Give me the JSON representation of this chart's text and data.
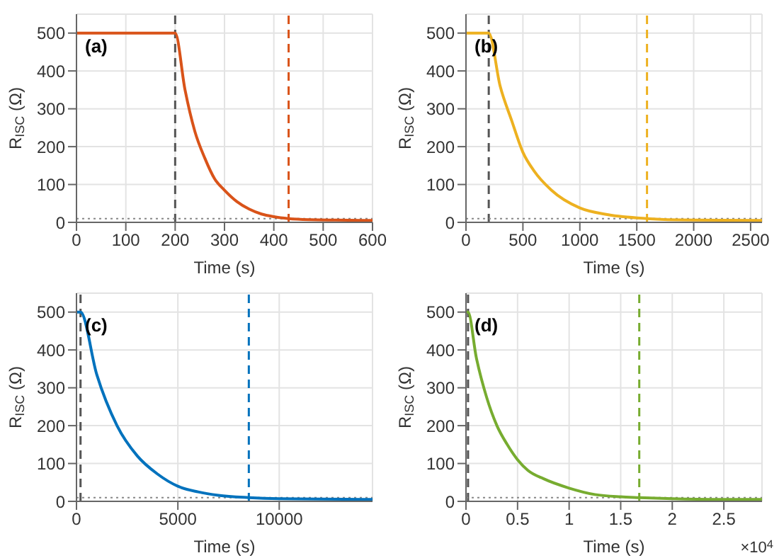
{
  "chart_data": [
    {
      "type": "line",
      "xlabel": "Time (s)",
      "ylabel": "R$_{ISC}$ (Ω)",
      "annotations": [
        "(a)"
      ],
      "xlim": [
        0,
        600
      ],
      "xticks": [
        0,
        100,
        200,
        300,
        400,
        500,
        600
      ],
      "ylim": [
        0,
        550
      ],
      "yticks": [
        0,
        100,
        200,
        300,
        400,
        500
      ],
      "grid": true,
      "series": [
        {
          "color": "#d95319",
          "x": [
            0,
            200,
            220,
            240,
            260,
            280,
            300,
            325,
            350,
            375,
            400,
            430,
            475,
            525,
            600
          ],
          "values": [
            500,
            500,
            350,
            240,
            170,
            115,
            85,
            55,
            35,
            22,
            15,
            10,
            7,
            6,
            5
          ]
        }
      ],
      "ref_lines": [
        {
          "axis": "x",
          "value": 200,
          "color": "#555555",
          "line_style": "dashed"
        },
        {
          "axis": "x",
          "value": 430,
          "color": "#d95319",
          "line_style": "dashed"
        },
        {
          "axis": "y",
          "value": 10,
          "color": "#888888",
          "line_style": "dotted"
        }
      ]
    },
    {
      "type": "line",
      "xlabel": "Time (s)",
      "ylabel": "R$_{ISC}$ (Ω)",
      "annotations": [
        "(b)"
      ],
      "xlim": [
        0,
        2600
      ],
      "xticks": [
        0,
        500,
        1000,
        1500,
        2000,
        2500
      ],
      "ylim": [
        0,
        550
      ],
      "yticks": [
        0,
        100,
        200,
        300,
        400,
        500
      ],
      "grid": true,
      "series": [
        {
          "color": "#edb120",
          "x": [
            0,
            200,
            300,
            400,
            500,
            600,
            750,
            1000,
            1250,
            1590,
            2000,
            2600
          ],
          "values": [
            500,
            500,
            360,
            270,
            185,
            135,
            85,
            38,
            20,
            10,
            6,
            5
          ]
        }
      ],
      "ref_lines": [
        {
          "axis": "x",
          "value": 200,
          "color": "#555555",
          "line_style": "dashed"
        },
        {
          "axis": "x",
          "value": 1590,
          "color": "#edb120",
          "line_style": "dashed"
        },
        {
          "axis": "y",
          "value": 10,
          "color": "#888888",
          "line_style": "dotted"
        }
      ]
    },
    {
      "type": "line",
      "xlabel": "Time (s)",
      "ylabel": "R$_{ISC}$ (Ω)",
      "annotations": [
        "(c)"
      ],
      "xlim": [
        0,
        14600
      ],
      "xticks": [
        0,
        5000,
        10000
      ],
      "ylim": [
        0,
        550
      ],
      "yticks": [
        0,
        100,
        200,
        300,
        400,
        500
      ],
      "grid": true,
      "series": [
        {
          "color": "#0072bd",
          "x": [
            0,
            200,
            1000,
            2000,
            3000,
            4000,
            5000,
            6000,
            7000,
            8500,
            10000,
            12000,
            14600
          ],
          "values": [
            500,
            500,
            335,
            200,
            120,
            72,
            40,
            25,
            16,
            10,
            7,
            6,
            5
          ]
        }
      ],
      "ref_lines": [
        {
          "axis": "x",
          "value": 200,
          "color": "#555555",
          "line_style": "dashed"
        },
        {
          "axis": "x",
          "value": 8500,
          "color": "#0072bd",
          "line_style": "dashed"
        },
        {
          "axis": "y",
          "value": 10,
          "color": "#888888",
          "line_style": "dotted"
        }
      ]
    },
    {
      "type": "line",
      "xlabel": "Time (s)",
      "ylabel": "R$_{ISC}$ (Ω)",
      "annotations": [
        "(d)",
        "×10$^{4}$"
      ],
      "xlim": [
        0,
        2.87
      ],
      "xticks": [
        0,
        0.5,
        1,
        1.5,
        2,
        2.5
      ],
      "ylim": [
        0,
        550
      ],
      "yticks": [
        0,
        100,
        200,
        300,
        400,
        500
      ],
      "grid": true,
      "series": [
        {
          "color": "#77ac30",
          "x": [
            0,
            0.02,
            0.1,
            0.2,
            0.3,
            0.4,
            0.5,
            0.6,
            0.75,
            1,
            1.25,
            1.5,
            1.68,
            2,
            2.5,
            2.87
          ],
          "values": [
            500,
            500,
            380,
            275,
            200,
            150,
            110,
            82,
            60,
            35,
            18,
            12,
            10,
            7,
            5,
            5
          ]
        }
      ],
      "ref_lines": [
        {
          "axis": "x",
          "value": 0.02,
          "color": "#555555",
          "line_style": "dashed"
        },
        {
          "axis": "x",
          "value": 1.68,
          "color": "#77ac30",
          "line_style": "dashed"
        },
        {
          "axis": "y",
          "value": 10,
          "color": "#888888",
          "line_style": "dotted"
        }
      ]
    }
  ]
}
